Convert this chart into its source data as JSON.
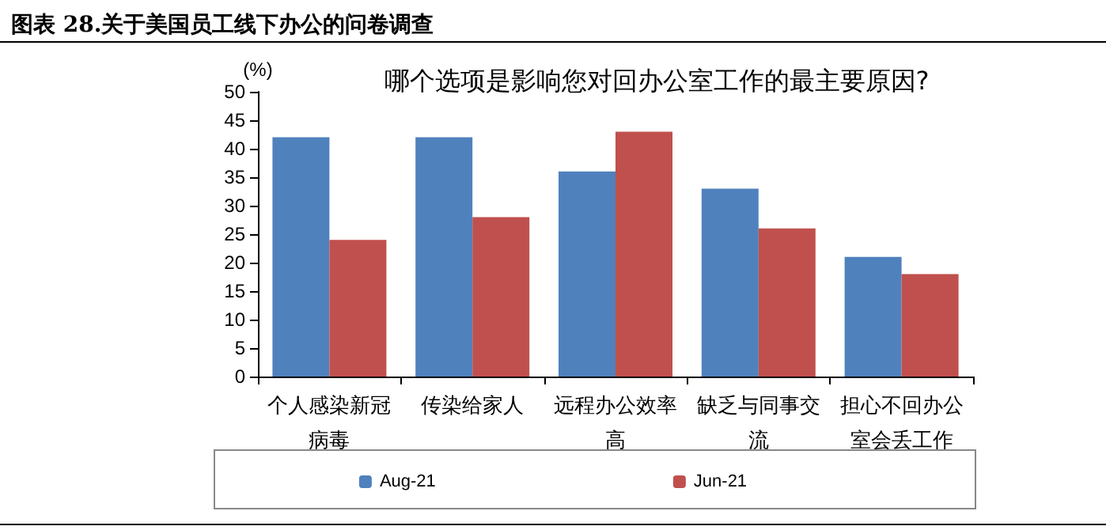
{
  "chart_data": {
    "type": "bar",
    "title": "图表 28.关于美国员工线下办公的问卷调查",
    "subtitle": "哪个选项是影响您对回办公室工作的最主要原因?",
    "ylabel": "(%)",
    "categories": [
      "个人感染新冠病毒",
      "传染给家人",
      "远程办公效率高",
      "缺乏与同事交流",
      "担心不回办公室会丢工作"
    ],
    "series": [
      {
        "name": "Aug-21",
        "color": "#4f81bd",
        "values": [
          42,
          42,
          36,
          33,
          21
        ]
      },
      {
        "name": "Jun-21",
        "color": "#c0504d",
        "values": [
          24,
          28,
          43,
          26,
          18
        ]
      }
    ],
    "ylim": [
      0,
      50
    ],
    "yticks": [
      0,
      5,
      10,
      15,
      20,
      25,
      30,
      35,
      40,
      45,
      50
    ],
    "grid": false,
    "legend": "bottom"
  }
}
